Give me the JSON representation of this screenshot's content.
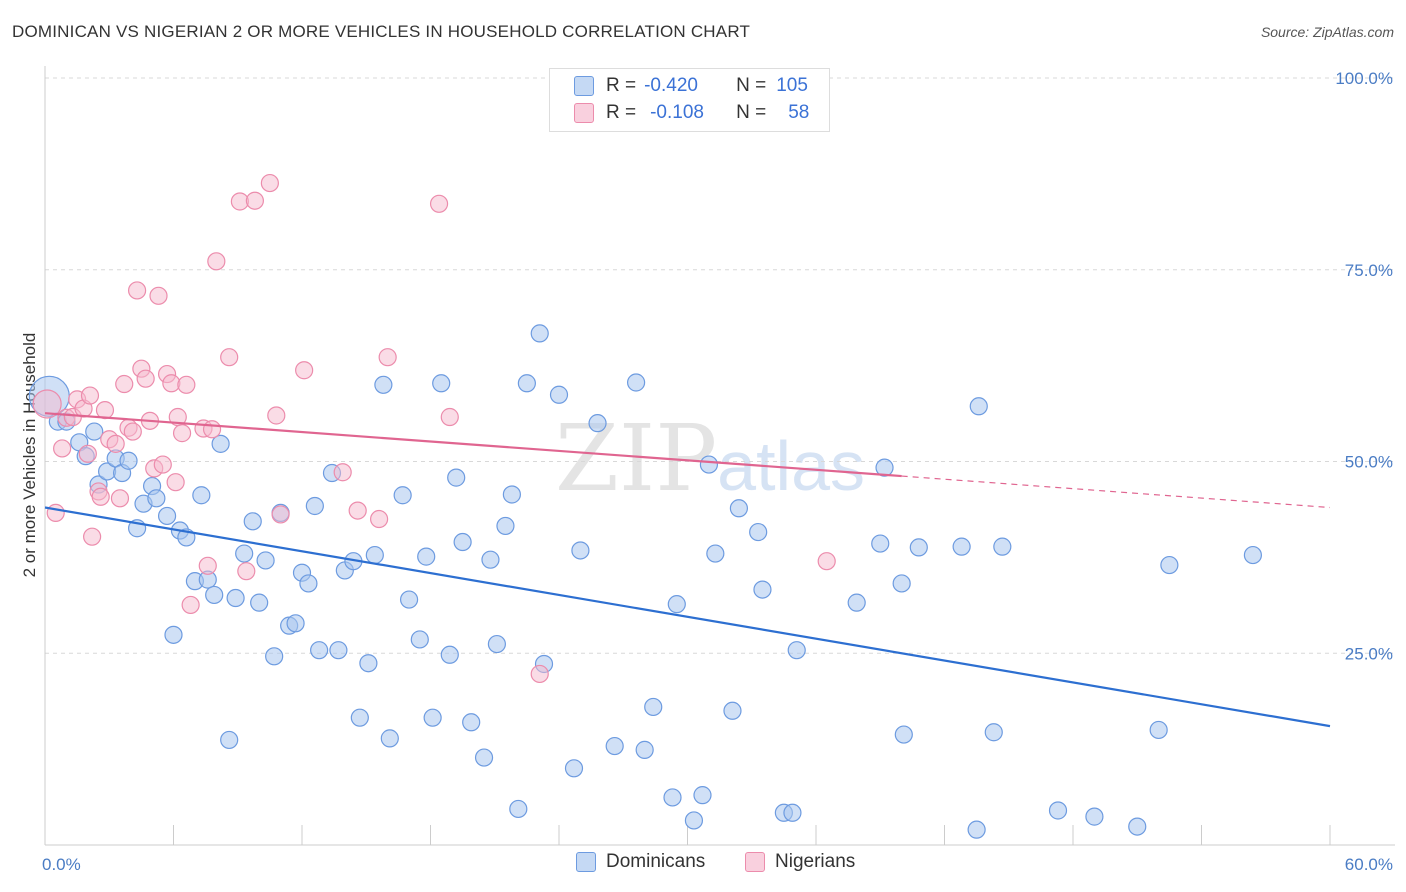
{
  "header": {
    "title": "DOMINICAN VS NIGERIAN 2 OR MORE VEHICLES IN HOUSEHOLD CORRELATION CHART",
    "source": "Source: ZipAtlas.com"
  },
  "watermark": {
    "zip": "ZIP",
    "atlas": "atlas"
  },
  "legend": {
    "rows": [
      {
        "r_label": "R =",
        "r_value": "-0.420",
        "n_label": "N =",
        "n_value": "105",
        "color": "#a9c7ef"
      },
      {
        "r_label": "R =",
        "r_value": "-0.108",
        "n_label": "N =",
        "n_value": "58",
        "color": "#f6b9cd"
      }
    ]
  },
  "bottom_legend": {
    "dominicans": "Dominicans",
    "nigerians": "Nigerians"
  },
  "chart_data": {
    "type": "scatter",
    "title": "DOMINICAN VS NIGERIAN 2 OR MORE VEHICLES IN HOUSEHOLD CORRELATION CHART",
    "xlabel": "",
    "ylabel": "2 or more Vehicles in Household",
    "xlim": [
      0,
      60
    ],
    "ylim": [
      0,
      100
    ],
    "x_tick_labels": [
      "0.0%",
      "60.0%"
    ],
    "y_ticks": [
      25,
      50,
      75,
      100
    ],
    "y_tick_labels": [
      "25.0%",
      "50.0%",
      "75.0%",
      "100.0%"
    ],
    "grid": true,
    "legend_position": "top-center",
    "colors": {
      "dominicans_fill": "#a9c7ef",
      "dominicans_line": "#2d6fd1",
      "nigerians_fill": "#f6b9cd",
      "nigerians_line": "#e06590"
    },
    "series": [
      {
        "name": "Dominicans",
        "trend": {
          "x": [
            0,
            60
          ],
          "y": [
            44.0,
            15.5
          ]
        },
        "points": [
          {
            "x": 0.2,
            "y": 58.5,
            "big": true
          },
          {
            "x": 0.6,
            "y": 55.2
          },
          {
            "x": 1.0,
            "y": 55.2
          },
          {
            "x": 1.6,
            "y": 52.5
          },
          {
            "x": 1.9,
            "y": 50.7
          },
          {
            "x": 2.3,
            "y": 53.9
          },
          {
            "x": 2.5,
            "y": 47.0
          },
          {
            "x": 2.9,
            "y": 48.7
          },
          {
            "x": 3.3,
            "y": 50.4
          },
          {
            "x": 3.6,
            "y": 48.5
          },
          {
            "x": 3.9,
            "y": 50.1
          },
          {
            "x": 4.3,
            "y": 41.3
          },
          {
            "x": 4.6,
            "y": 44.5
          },
          {
            "x": 5.0,
            "y": 46.8
          },
          {
            "x": 5.2,
            "y": 45.2
          },
          {
            "x": 5.7,
            "y": 42.9
          },
          {
            "x": 6.0,
            "y": 27.4
          },
          {
            "x": 6.3,
            "y": 41.0
          },
          {
            "x": 6.6,
            "y": 40.1
          },
          {
            "x": 7.0,
            "y": 34.4
          },
          {
            "x": 7.3,
            "y": 45.6
          },
          {
            "x": 7.6,
            "y": 34.6
          },
          {
            "x": 7.9,
            "y": 32.6
          },
          {
            "x": 8.2,
            "y": 52.3
          },
          {
            "x": 8.6,
            "y": 13.7
          },
          {
            "x": 8.9,
            "y": 32.2
          },
          {
            "x": 9.3,
            "y": 38.0
          },
          {
            "x": 9.7,
            "y": 42.2
          },
          {
            "x": 10.0,
            "y": 31.6
          },
          {
            "x": 10.3,
            "y": 37.1
          },
          {
            "x": 10.7,
            "y": 24.6
          },
          {
            "x": 11.0,
            "y": 43.3
          },
          {
            "x": 11.4,
            "y": 28.6
          },
          {
            "x": 11.7,
            "y": 28.9
          },
          {
            "x": 12.0,
            "y": 35.5
          },
          {
            "x": 12.3,
            "y": 34.1
          },
          {
            "x": 12.6,
            "y": 44.2
          },
          {
            "x": 12.8,
            "y": 25.4
          },
          {
            "x": 13.4,
            "y": 48.5
          },
          {
            "x": 13.7,
            "y": 25.4
          },
          {
            "x": 14.0,
            "y": 35.8
          },
          {
            "x": 14.4,
            "y": 37.0
          },
          {
            "x": 14.7,
            "y": 16.6
          },
          {
            "x": 15.1,
            "y": 23.7
          },
          {
            "x": 15.4,
            "y": 37.8
          },
          {
            "x": 15.8,
            "y": 60.0
          },
          {
            "x": 16.1,
            "y": 13.9
          },
          {
            "x": 16.7,
            "y": 45.6
          },
          {
            "x": 17.0,
            "y": 32.0
          },
          {
            "x": 17.5,
            "y": 26.8
          },
          {
            "x": 17.8,
            "y": 37.6
          },
          {
            "x": 18.1,
            "y": 16.6
          },
          {
            "x": 18.5,
            "y": 60.2
          },
          {
            "x": 18.9,
            "y": 24.8
          },
          {
            "x": 19.2,
            "y": 47.9
          },
          {
            "x": 19.5,
            "y": 39.5
          },
          {
            "x": 19.9,
            "y": 16.0
          },
          {
            "x": 20.5,
            "y": 11.4
          },
          {
            "x": 20.8,
            "y": 37.2
          },
          {
            "x": 21.1,
            "y": 26.2
          },
          {
            "x": 21.5,
            "y": 41.6
          },
          {
            "x": 21.8,
            "y": 45.7
          },
          {
            "x": 22.1,
            "y": 4.7
          },
          {
            "x": 22.5,
            "y": 60.2
          },
          {
            "x": 23.1,
            "y": 66.7
          },
          {
            "x": 23.3,
            "y": 23.6
          },
          {
            "x": 24.0,
            "y": 58.7
          },
          {
            "x": 24.7,
            "y": 10.0
          },
          {
            "x": 25.0,
            "y": 38.4
          },
          {
            "x": 25.8,
            "y": 55.0
          },
          {
            "x": 26.6,
            "y": 12.9
          },
          {
            "x": 27.6,
            "y": 60.3
          },
          {
            "x": 28.0,
            "y": 12.4
          },
          {
            "x": 28.4,
            "y": 18.0
          },
          {
            "x": 29.3,
            "y": 6.2
          },
          {
            "x": 29.5,
            "y": 31.4
          },
          {
            "x": 30.3,
            "y": 3.2
          },
          {
            "x": 30.7,
            "y": 6.5
          },
          {
            "x": 31.0,
            "y": 49.6
          },
          {
            "x": 31.3,
            "y": 38.0
          },
          {
            "x": 32.1,
            "y": 17.5
          },
          {
            "x": 32.4,
            "y": 43.9
          },
          {
            "x": 33.3,
            "y": 40.8
          },
          {
            "x": 33.5,
            "y": 33.3
          },
          {
            "x": 34.5,
            "y": 4.2
          },
          {
            "x": 34.9,
            "y": 4.2
          },
          {
            "x": 35.1,
            "y": 25.4
          },
          {
            "x": 37.9,
            "y": 31.6
          },
          {
            "x": 39.0,
            "y": 39.3
          },
          {
            "x": 39.2,
            "y": 49.2
          },
          {
            "x": 40.0,
            "y": 34.1
          },
          {
            "x": 40.1,
            "y": 14.4
          },
          {
            "x": 40.8,
            "y": 38.8
          },
          {
            "x": 42.8,
            "y": 38.9
          },
          {
            "x": 43.6,
            "y": 57.2
          },
          {
            "x": 43.5,
            "y": 2.0
          },
          {
            "x": 44.3,
            "y": 14.7
          },
          {
            "x": 44.7,
            "y": 38.9
          },
          {
            "x": 47.3,
            "y": 4.5
          },
          {
            "x": 49.0,
            "y": 3.7
          },
          {
            "x": 51.0,
            "y": 2.4
          },
          {
            "x": 52.0,
            "y": 15.0
          },
          {
            "x": 52.5,
            "y": 36.5
          },
          {
            "x": 56.4,
            "y": 37.8
          }
        ]
      },
      {
        "name": "Nigerians",
        "trend": {
          "x": [
            0,
            40
          ],
          "y": [
            56.3,
            48.1
          ]
        },
        "trend_dashed": {
          "x": [
            40,
            60
          ],
          "y": [
            48.1,
            44.0
          ]
        },
        "points": [
          {
            "x": 0.1,
            "y": 57.5,
            "big": true
          },
          {
            "x": 0.5,
            "y": 43.3
          },
          {
            "x": 0.8,
            "y": 51.7
          },
          {
            "x": 1.0,
            "y": 55.7
          },
          {
            "x": 1.3,
            "y": 55.8
          },
          {
            "x": 1.5,
            "y": 58.1
          },
          {
            "x": 1.8,
            "y": 56.9
          },
          {
            "x": 2.0,
            "y": 51.0
          },
          {
            "x": 2.1,
            "y": 58.6
          },
          {
            "x": 2.2,
            "y": 40.2
          },
          {
            "x": 2.5,
            "y": 46.1
          },
          {
            "x": 2.6,
            "y": 45.4
          },
          {
            "x": 2.8,
            "y": 56.7
          },
          {
            "x": 3.0,
            "y": 52.9
          },
          {
            "x": 3.3,
            "y": 52.3
          },
          {
            "x": 3.5,
            "y": 45.2
          },
          {
            "x": 3.7,
            "y": 60.1
          },
          {
            "x": 3.9,
            "y": 54.4
          },
          {
            "x": 4.1,
            "y": 53.9
          },
          {
            "x": 4.3,
            "y": 72.3
          },
          {
            "x": 4.5,
            "y": 62.1
          },
          {
            "x": 4.7,
            "y": 60.8
          },
          {
            "x": 4.9,
            "y": 55.3
          },
          {
            "x": 5.1,
            "y": 49.1
          },
          {
            "x": 5.3,
            "y": 71.6
          },
          {
            "x": 5.5,
            "y": 49.6
          },
          {
            "x": 5.7,
            "y": 61.4
          },
          {
            "x": 5.9,
            "y": 60.2
          },
          {
            "x": 6.1,
            "y": 47.3
          },
          {
            "x": 6.2,
            "y": 55.8
          },
          {
            "x": 6.4,
            "y": 53.7
          },
          {
            "x": 6.6,
            "y": 60.0
          },
          {
            "x": 6.8,
            "y": 31.3
          },
          {
            "x": 7.4,
            "y": 54.3
          },
          {
            "x": 7.6,
            "y": 36.4
          },
          {
            "x": 7.8,
            "y": 54.2
          },
          {
            "x": 8.0,
            "y": 76.1
          },
          {
            "x": 8.6,
            "y": 63.6
          },
          {
            "x": 9.1,
            "y": 83.9
          },
          {
            "x": 9.4,
            "y": 35.7
          },
          {
            "x": 9.8,
            "y": 84.0
          },
          {
            "x": 10.5,
            "y": 86.3
          },
          {
            "x": 10.8,
            "y": 56.0
          },
          {
            "x": 11.0,
            "y": 43.1
          },
          {
            "x": 12.1,
            "y": 61.9
          },
          {
            "x": 13.9,
            "y": 48.6
          },
          {
            "x": 14.6,
            "y": 43.6
          },
          {
            "x": 15.6,
            "y": 42.5
          },
          {
            "x": 16.0,
            "y": 63.6
          },
          {
            "x": 18.4,
            "y": 83.6
          },
          {
            "x": 18.9,
            "y": 55.8
          },
          {
            "x": 23.1,
            "y": 22.3
          },
          {
            "x": 36.5,
            "y": 37.0
          }
        ]
      }
    ]
  }
}
